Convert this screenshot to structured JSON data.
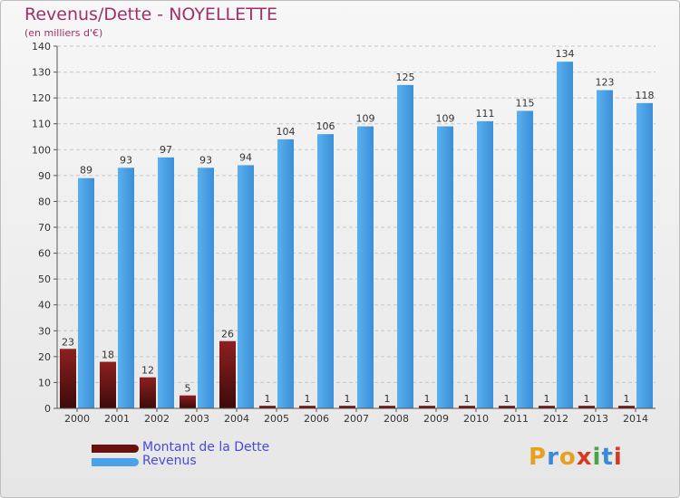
{
  "title": "Revenus/Dette - NOYELLETTE",
  "subtitle": "(en milliers d'€)",
  "colors": {
    "title": "#a0306a",
    "dette": "#7a1a1a",
    "revenus": "#4aa3e8",
    "legend_text": "#4a4ad8"
  },
  "legend": [
    {
      "label": "Montant de la Dette",
      "color": "#6a1010"
    },
    {
      "label": "Revenus",
      "color": "#4aa3e8"
    }
  ],
  "logo": {
    "text": "Proxiti"
  },
  "chart_data": {
    "type": "bar",
    "categories": [
      "2000",
      "2001",
      "2002",
      "2003",
      "2004",
      "2005",
      "2006",
      "2007",
      "2008",
      "2009",
      "2010",
      "2011",
      "2012",
      "2013",
      "2014"
    ],
    "series": [
      {
        "name": "Montant de la Dette",
        "values": [
          23,
          18,
          12,
          5,
          26,
          1,
          1,
          1,
          1,
          1,
          1,
          1,
          1,
          1,
          1
        ]
      },
      {
        "name": "Revenus",
        "values": [
          89,
          93,
          97,
          93,
          94,
          104,
          106,
          109,
          125,
          109,
          111,
          115,
          134,
          123,
          118
        ]
      }
    ],
    "ylim": [
      0,
      140
    ],
    "yticks": [
      0,
      10,
      20,
      30,
      40,
      50,
      60,
      70,
      80,
      90,
      100,
      110,
      120,
      130,
      140
    ],
    "grid": true,
    "legend_position": "bottom-left"
  }
}
